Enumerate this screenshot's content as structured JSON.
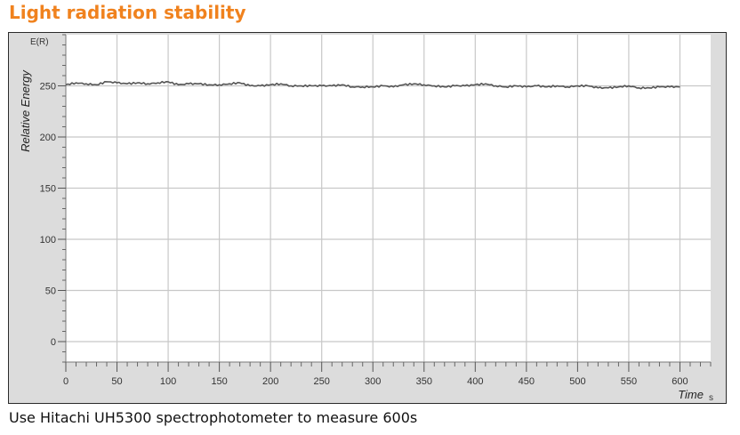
{
  "page": {
    "title": "Light radiation stability",
    "caption": "Use Hitachi UH5300 spectrophotometer to measure 600s"
  },
  "colors": {
    "title": "#f0821e",
    "plot_background": "#ffffff",
    "outer_background": "#dcdcdc",
    "grid": "#c8c8c8",
    "line": "#555555"
  },
  "chart_data": {
    "type": "line",
    "title": "",
    "xlabel": "Time",
    "xunit": "s",
    "ylabel": "Relative Energy",
    "yunit": "E(R)",
    "xlim": [
      0,
      630
    ],
    "ylim": [
      -20,
      300
    ],
    "xticks": [
      0,
      50,
      100,
      150,
      200,
      250,
      300,
      350,
      400,
      450,
      500,
      550,
      600
    ],
    "yticks": [
      0,
      50,
      100,
      150,
      200,
      250
    ],
    "grid": true,
    "legend": "none",
    "series": [
      {
        "x": [
          0,
          10,
          20,
          30,
          40,
          50,
          60,
          70,
          80,
          90,
          100,
          110,
          120,
          130,
          140,
          150,
          160,
          170,
          180,
          190,
          200,
          210,
          220,
          230,
          240,
          250,
          260,
          270,
          280,
          290,
          300,
          310,
          320,
          330,
          340,
          350,
          360,
          370,
          380,
          390,
          400,
          410,
          420,
          430,
          440,
          450,
          460,
          470,
          480,
          490,
          500,
          510,
          520,
          530,
          540,
          550,
          560,
          570,
          580,
          590,
          600
        ],
        "values": [
          251,
          253,
          252,
          251,
          254,
          253,
          252,
          253,
          252,
          253,
          254,
          251,
          252,
          252,
          251,
          251,
          252,
          253,
          250,
          250,
          251,
          252,
          250,
          250,
          250,
          250,
          250,
          251,
          249,
          249,
          249,
          250,
          249,
          251,
          252,
          251,
          250,
          249,
          250,
          250,
          251,
          252,
          250,
          249,
          250,
          249,
          250,
          249,
          250,
          249,
          250,
          250,
          248,
          248,
          249,
          250,
          248,
          248,
          249,
          249,
          249
        ]
      }
    ]
  }
}
